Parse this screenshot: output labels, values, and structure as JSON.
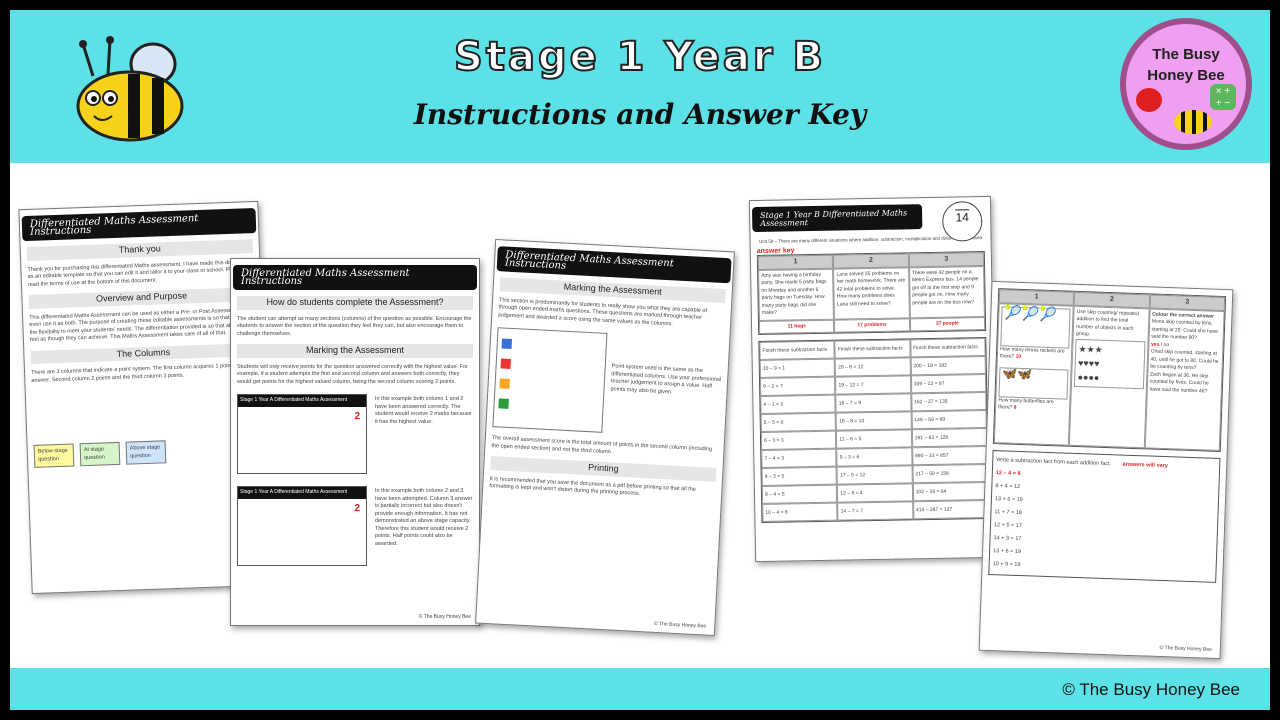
{
  "header": {
    "title": "Stage 1 Year B",
    "subtitle": "Instructions and Answer Key"
  },
  "logo": {
    "line1": "The Busy",
    "line2": "Honey Bee"
  },
  "footer": {
    "copyright": "© The Busy Honey Bee"
  },
  "colors": {
    "banner": "#5ce1e6",
    "logo_bg": "#ee9ff0",
    "logo_border": "#a04e8c",
    "answer_red": "#d22222"
  },
  "page1": {
    "bar": "Differentiated Maths Assessment Instructions",
    "s1": "Thank you",
    "p1": "Thank you for purchasing this differentiated Maths assessment. I have made this document as an editable template so that you can edit it and tailor it to your class or school. Please read the terms of use at the bottom of this document.",
    "s2": "Overview and Purpose",
    "p2": "This differentiated Maths Assessment can be used as either a Pre- or Post Assessment, or even use it as both. The purpose of creating these editable assessments is so that you have the flexibility to meet your students' needs. The differentiation provided is so that all students feel as though they can achieve. This Maths Assessment takes care of all of that.",
    "s3": "The Columns",
    "p3": "There are 3 columns that indicate a point system. The first column acquires 1 point per answer. Second column 2 points and the third column 3 points.",
    "labels": [
      "Below stage question",
      "At stage question",
      "Above stage question"
    ]
  },
  "page2": {
    "bar": "Differentiated Maths Assessment Instructions",
    "s1": "How do students complete the Assessment?",
    "p1": "The student can attempt as many sections (columns) of the question as possible. Encourage the students to answer the section of the question they feel they can, but also encourage them to challenge themselves.",
    "s2": "Marking the Assessment",
    "p2": "Students will only receive points for the question answered correctly with the highest value. For example, if a student attempts the first and second column and answers both correctly, they would get points for the highest valued column, being the second column scoring 2 points.",
    "note1": "In this example both column 1 and 2 have been answered correctly. The student would receive 2 marks because it has the highest value.",
    "note2": "In this example both column 2 and 3 have been attempted. Column 3 answer is partially incorrect but also doesn't provide enough information. It has not demonstrated an above stage capacity. Therefore this student would receive 2 points. Half points could also be awarded.",
    "mini_title": "Stage 1 Year A Differentiated Maths Assessment",
    "score": "2",
    "foot": "© The Busy Honey Bee"
  },
  "page3": {
    "bar": "Differentiated Maths Assessment Instructions",
    "s1": "Marking the Assessment",
    "p1": "This section is predominantly for students to really show you what they are capable of through open ended maths questions. These questions are marked through teacher judgement and awarded a score using the same values as the columns.",
    "note": "Point system used is the same as the differentiated columns. Use your professional teacher judgement to assign a value. Half points may also be given.",
    "p2": "The overall assessment score is the total amount of points in the second column (including the open ended section) and not the third column.",
    "s2": "Printing",
    "p3": "It is recommended that you save the document as a pdf before printing so that all the formatting is kept and won't distort during the printing process.",
    "foot": "© The Busy Honey Bee"
  },
  "page4": {
    "bar": "Stage 1 Year B Differentiated Maths Assessment",
    "score": "14",
    "intro": "Unit 5b – There are many different situations where addition, subtraction, multiplication and division can be used",
    "answer_key": "answer key",
    "cols": [
      "1",
      "2",
      "3"
    ],
    "q": [
      "Amy was having a birthday party. She made 5 party bags on Monday and another 6 party bags on Tuesday. How many party bags did she make?",
      "Lana solved 25 problems on her math homework. There are 42 total problems to solve. How many problems does Lana still need to solve?",
      "There were 42 people on a Metro Express bus. 14 people got off at the first stop and 9 people got on. How many people are on the bus now?"
    ],
    "a": [
      "11 bags",
      "17 problems",
      "37 people"
    ],
    "facts_heads": [
      "Finish these subtraction facts",
      "Finish these subtraction facts",
      "Finish these subtraction facts"
    ],
    "facts1": [
      "10 – 9 = 1",
      "9 – 2 = 7",
      "4 – 1 = 3",
      "5 – 5 = 0",
      "6 – 3 = 3",
      "7 – 4 = 3",
      "8 – 3 = 5",
      "9 – 4 = 5",
      "10 – 4 = 6"
    ],
    "facts2": [
      "20 – 8 = 12",
      "19 – 12 = 7",
      "16 – 7 = 9",
      "18 – 8 = 10",
      "11 – 6 = 5",
      "9 – 3 = 6",
      "17 – 5 = 12",
      "12 – 8 = 4",
      "14 – 7 = 7"
    ],
    "facts3": [
      "200 – 18 = 182",
      "109 – 12 = 97",
      "162 – 27 = 135",
      "148 – 59 = 89",
      "191 – 63 = 128",
      "890 – 33 = 857",
      "217 – 59 = 158",
      "102 – 38 = 64",
      "414 – 287 = 127"
    ]
  },
  "page5": {
    "cols": [
      "1",
      "2",
      "3"
    ],
    "c1a": "How many tennis rackets are there?",
    "c1a_ans": "10",
    "c1b": "How many butterflies are there?",
    "c1b_ans": "8",
    "c2": "Use skip counting/ repeated addition to find the total number of objects in each group.",
    "c3h": "Colour the correct answer",
    "c3a": "Mona skip counted by tens, starting at 20. Could she have said the number 90?",
    "c3b": "Chad skip counted, starting at 40, until he got to 80. Could he be counting by tens?",
    "c3c": "Zach began at 36. He skip counted by fives. Could he have said the number 46?",
    "yes": "yes",
    "no": "no",
    "sub_head": "Write a subtraction fact from each addition fact.",
    "answers_vary": "answers will vary",
    "facts": [
      "8 + 4 = 12",
      "13 + 6 = 19",
      "11 + 7 = 18",
      "12 + 5 = 17",
      "14 + 3 = 17",
      "13 + 6 = 19",
      "10 + 9 = 19"
    ],
    "fact_example": "12 – 4 = 8",
    "foot": "© The Busy Honey Bee"
  }
}
